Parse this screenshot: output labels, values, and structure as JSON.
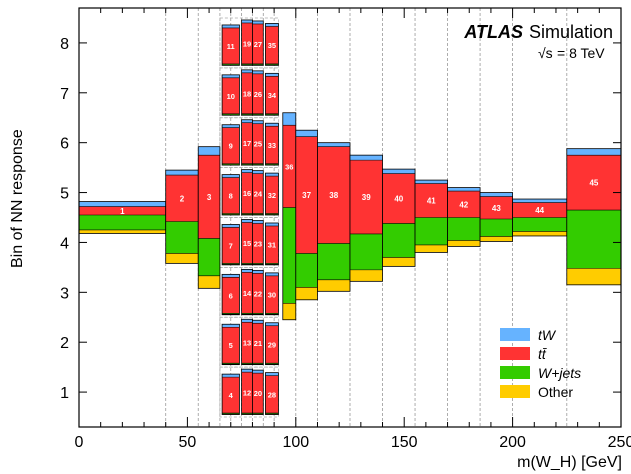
{
  "chart_data": {
    "type": "bar",
    "subtype": "stacked-bins",
    "xlabel": "m(W_H) [GeV]",
    "ylabel": "Bin of NN response",
    "xlim": [
      0,
      250
    ],
    "ylim": [
      0.3,
      8.7
    ],
    "x_ticks": [
      0,
      50,
      100,
      150,
      200,
      250
    ],
    "y_ticks": [
      1,
      2,
      3,
      4,
      5,
      6,
      7,
      8
    ],
    "grid": false,
    "legend_position": "bottom-right",
    "annotations": {
      "experiment": "ATLAS",
      "label": "Simulation",
      "energy_prefix": "√s",
      "energy_value": "= 8 TeV"
    },
    "series": [
      {
        "name": "tW",
        "color": "#66b3ff"
      },
      {
        "name": "tt̄",
        "color": "#ff3333"
      },
      {
        "name": "W+jets",
        "color": "#33cc00"
      },
      {
        "name": "Other",
        "color": "#ffcc00"
      }
    ],
    "separators_x": [
      40,
      55,
      65,
      70,
      75,
      80,
      85,
      90,
      100,
      110,
      125,
      140,
      155,
      170,
      185,
      200,
      225,
      250
    ],
    "bins": [
      {
        "id": "1",
        "x": [
          0,
          40
        ],
        "ymin": 4.18,
        "layers": [
          4.25,
          4.55,
          4.72,
          4.82
        ]
      },
      {
        "id": "2",
        "x": [
          40,
          55
        ],
        "ymin": 3.58,
        "layers": [
          3.78,
          4.42,
          5.35,
          5.45
        ]
      },
      {
        "id": "3",
        "x": [
          55,
          65
        ],
        "ymin": 3.08,
        "layers": [
          3.33,
          4.08,
          5.75,
          5.92
        ]
      },
      {
        "id": "4",
        "x": [
          66,
          74
        ],
        "ymin": 0.55,
        "layers": [
          0.56,
          0.58,
          1.3,
          1.36
        ]
      },
      {
        "id": "5",
        "x": [
          66,
          74
        ],
        "ymin": 1.55,
        "layers": [
          1.56,
          1.58,
          2.3,
          2.36
        ]
      },
      {
        "id": "6",
        "x": [
          66,
          74
        ],
        "ymin": 2.55,
        "layers": [
          2.56,
          2.58,
          3.3,
          3.36
        ]
      },
      {
        "id": "7",
        "x": [
          66,
          74
        ],
        "ymin": 3.55,
        "layers": [
          3.56,
          3.58,
          4.3,
          4.36
        ]
      },
      {
        "id": "8",
        "x": [
          66,
          74
        ],
        "ymin": 4.55,
        "layers": [
          4.56,
          4.58,
          5.3,
          5.36
        ]
      },
      {
        "id": "9",
        "x": [
          66,
          74
        ],
        "ymin": 5.55,
        "layers": [
          5.56,
          5.58,
          6.3,
          6.36
        ]
      },
      {
        "id": "10",
        "x": [
          66,
          74
        ],
        "ymin": 6.55,
        "layers": [
          6.56,
          6.58,
          7.3,
          7.36
        ]
      },
      {
        "id": "11",
        "x": [
          66,
          74
        ],
        "ymin": 7.55,
        "layers": [
          7.56,
          7.58,
          8.3,
          8.36
        ]
      },
      {
        "id": "12",
        "x": [
          75,
          80
        ],
        "ymin": 0.55,
        "layers": [
          0.56,
          0.58,
          1.4,
          1.46
        ]
      },
      {
        "id": "13",
        "x": [
          75,
          80
        ],
        "ymin": 1.55,
        "layers": [
          1.56,
          1.58,
          2.4,
          2.46
        ]
      },
      {
        "id": "14",
        "x": [
          75,
          80
        ],
        "ymin": 2.55,
        "layers": [
          2.56,
          2.58,
          3.4,
          3.46
        ]
      },
      {
        "id": "15",
        "x": [
          75,
          80
        ],
        "ymin": 3.55,
        "layers": [
          3.56,
          3.58,
          4.4,
          4.46
        ]
      },
      {
        "id": "16",
        "x": [
          75,
          80
        ],
        "ymin": 4.55,
        "layers": [
          4.56,
          4.58,
          5.4,
          5.46
        ]
      },
      {
        "id": "17",
        "x": [
          75,
          80
        ],
        "ymin": 5.55,
        "layers": [
          5.56,
          5.58,
          6.4,
          6.46
        ]
      },
      {
        "id": "18",
        "x": [
          75,
          80
        ],
        "ymin": 6.55,
        "layers": [
          6.56,
          6.58,
          7.4,
          7.46
        ]
      },
      {
        "id": "19",
        "x": [
          75,
          80
        ],
        "ymin": 7.55,
        "layers": [
          7.56,
          7.58,
          8.4,
          8.46
        ]
      },
      {
        "id": "20",
        "x": [
          80,
          85
        ],
        "ymin": 0.55,
        "layers": [
          0.56,
          0.58,
          1.38,
          1.44
        ]
      },
      {
        "id": "21",
        "x": [
          80,
          85
        ],
        "ymin": 1.55,
        "layers": [
          1.56,
          1.58,
          2.38,
          2.44
        ]
      },
      {
        "id": "22",
        "x": [
          80,
          85
        ],
        "ymin": 2.55,
        "layers": [
          2.56,
          2.58,
          3.38,
          3.44
        ]
      },
      {
        "id": "23",
        "x": [
          80,
          85
        ],
        "ymin": 3.55,
        "layers": [
          3.56,
          3.58,
          4.38,
          4.44
        ]
      },
      {
        "id": "24",
        "x": [
          80,
          85
        ],
        "ymin": 4.55,
        "layers": [
          4.56,
          4.58,
          5.38,
          5.44
        ]
      },
      {
        "id": "25",
        "x": [
          80,
          85
        ],
        "ymin": 5.55,
        "layers": [
          5.56,
          5.58,
          6.38,
          6.44
        ]
      },
      {
        "id": "26",
        "x": [
          80,
          85
        ],
        "ymin": 6.55,
        "layers": [
          6.56,
          6.58,
          7.38,
          7.44
        ]
      },
      {
        "id": "27",
        "x": [
          80,
          85
        ],
        "ymin": 7.55,
        "layers": [
          7.56,
          7.58,
          8.38,
          8.44
        ]
      },
      {
        "id": "28",
        "x": [
          86,
          92
        ],
        "ymin": 0.55,
        "layers": [
          0.56,
          0.58,
          1.33,
          1.39
        ]
      },
      {
        "id": "29",
        "x": [
          86,
          92
        ],
        "ymin": 1.55,
        "layers": [
          1.56,
          1.58,
          2.33,
          2.39
        ]
      },
      {
        "id": "30",
        "x": [
          86,
          92
        ],
        "ymin": 2.55,
        "layers": [
          2.56,
          2.58,
          3.33,
          3.39
        ]
      },
      {
        "id": "31",
        "x": [
          86,
          92
        ],
        "ymin": 3.55,
        "layers": [
          3.56,
          3.58,
          4.33,
          4.39
        ]
      },
      {
        "id": "32",
        "x": [
          86,
          92
        ],
        "ymin": 4.55,
        "layers": [
          4.56,
          4.58,
          5.33,
          5.39
        ]
      },
      {
        "id": "33",
        "x": [
          86,
          92
        ],
        "ymin": 5.55,
        "layers": [
          5.56,
          5.58,
          6.33,
          6.39
        ]
      },
      {
        "id": "34",
        "x": [
          86,
          92
        ],
        "ymin": 6.55,
        "layers": [
          6.56,
          6.58,
          7.33,
          7.39
        ]
      },
      {
        "id": "35",
        "x": [
          86,
          92
        ],
        "ymin": 7.55,
        "layers": [
          7.56,
          7.58,
          8.33,
          8.39
        ]
      },
      {
        "id": "36",
        "x": [
          94,
          100
        ],
        "ymin": 2.45,
        "layers": [
          2.78,
          4.7,
          6.35,
          6.6
        ]
      },
      {
        "id": "37",
        "x": [
          100,
          110
        ],
        "ymin": 2.85,
        "layers": [
          3.1,
          3.78,
          6.12,
          6.25
        ]
      },
      {
        "id": "38",
        "x": [
          110,
          125
        ],
        "ymin": 3.02,
        "layers": [
          3.25,
          3.98,
          5.92,
          6.0
        ]
      },
      {
        "id": "39",
        "x": [
          125,
          140
        ],
        "ymin": 3.22,
        "layers": [
          3.45,
          4.17,
          5.65,
          5.75
        ]
      },
      {
        "id": "40",
        "x": [
          140,
          155
        ],
        "ymin": 3.52,
        "layers": [
          3.7,
          4.38,
          5.38,
          5.47
        ]
      },
      {
        "id": "41",
        "x": [
          155,
          170
        ],
        "ymin": 3.8,
        "layers": [
          3.95,
          4.5,
          5.18,
          5.25
        ]
      },
      {
        "id": "42",
        "x": [
          170,
          185
        ],
        "ymin": 3.92,
        "layers": [
          4.04,
          4.5,
          5.03,
          5.1
        ]
      },
      {
        "id": "43",
        "x": [
          185,
          200
        ],
        "ymin": 4.02,
        "layers": [
          4.12,
          4.47,
          4.92,
          5.0
        ]
      },
      {
        "id": "44",
        "x": [
          200,
          225
        ],
        "ymin": 4.13,
        "layers": [
          4.22,
          4.5,
          4.8,
          4.87
        ]
      },
      {
        "id": "45",
        "x": [
          225,
          250
        ],
        "ymin": 3.15,
        "layers": [
          3.48,
          4.65,
          5.75,
          5.88
        ]
      }
    ]
  }
}
